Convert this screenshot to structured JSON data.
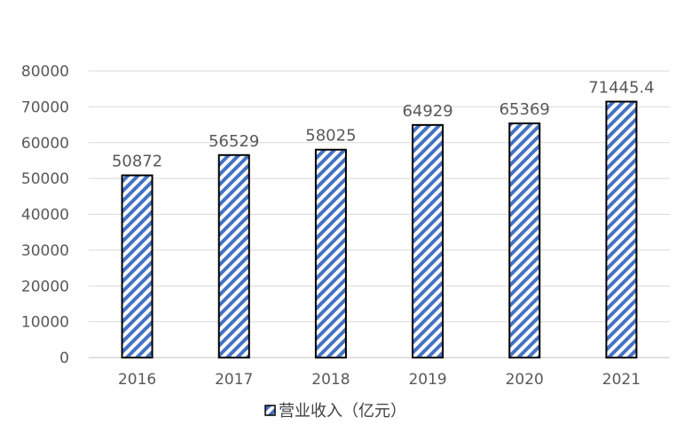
{
  "chart_data": {
    "type": "bar",
    "categories": [
      "2016",
      "2017",
      "2018",
      "2019",
      "2020",
      "2021"
    ],
    "series": [
      {
        "name": "营业收入（亿元）",
        "values": [
          50872,
          56529,
          58025,
          64929,
          65369,
          71445.4
        ],
        "labels": [
          "50872",
          "56529",
          "58025",
          "64929",
          "65369",
          "71445.4"
        ]
      }
    ],
    "ylim": [
      0,
      80000
    ],
    "yticks": [
      "0",
      "10000",
      "20000",
      "30000",
      "40000",
      "50000",
      "60000",
      "70000",
      "80000"
    ],
    "grid": true,
    "legend": "bottom",
    "colors": {
      "bar_stripe": "#4472C4",
      "bar_bg": "#ffffff",
      "bar_border": "#000000",
      "grid": "#d9d9d9"
    }
  }
}
